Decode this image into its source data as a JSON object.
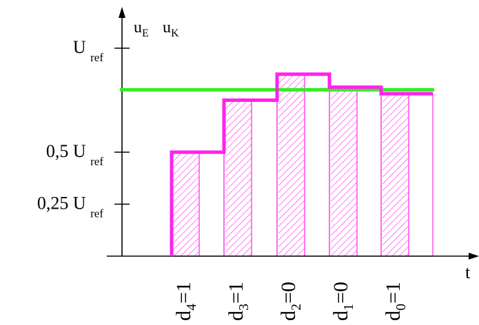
{
  "legend": {
    "uE": {
      "main": "u",
      "sub": "E"
    },
    "uK": {
      "main": "u",
      "sub": "K"
    }
  },
  "y_axis": {
    "ticks": [
      {
        "value": 1.0,
        "prefix": "U",
        "sub": "ref"
      },
      {
        "value": 0.5,
        "prefix": "0,5 U",
        "sub": "ref"
      },
      {
        "value": 0.25,
        "prefix": "0,25 U",
        "sub": "ref"
      }
    ]
  },
  "x_axis": {
    "label": "t"
  },
  "uE_level": 0.8,
  "steps": [
    {
      "bit_label": "d",
      "bit_sub": "4",
      "bit_eq": "=1",
      "uK": 0.5
    },
    {
      "bit_label": "d",
      "bit_sub": "3",
      "bit_eq": "=1",
      "uK": 0.75
    },
    {
      "bit_label": "d",
      "bit_sub": "2",
      "bit_eq": "=0",
      "uK": 0.875
    },
    {
      "bit_label": "d",
      "bit_sub": "1",
      "bit_eq": "=0",
      "uK": 0.8125
    },
    {
      "bit_label": "d",
      "bit_sub": "0",
      "bit_eq": "=1",
      "uK": 0.78125
    }
  ],
  "colors": {
    "uE": "#33ee22",
    "uK": "#ff22ee",
    "hatch": "#ff22ee",
    "axis": "#000000"
  }
}
